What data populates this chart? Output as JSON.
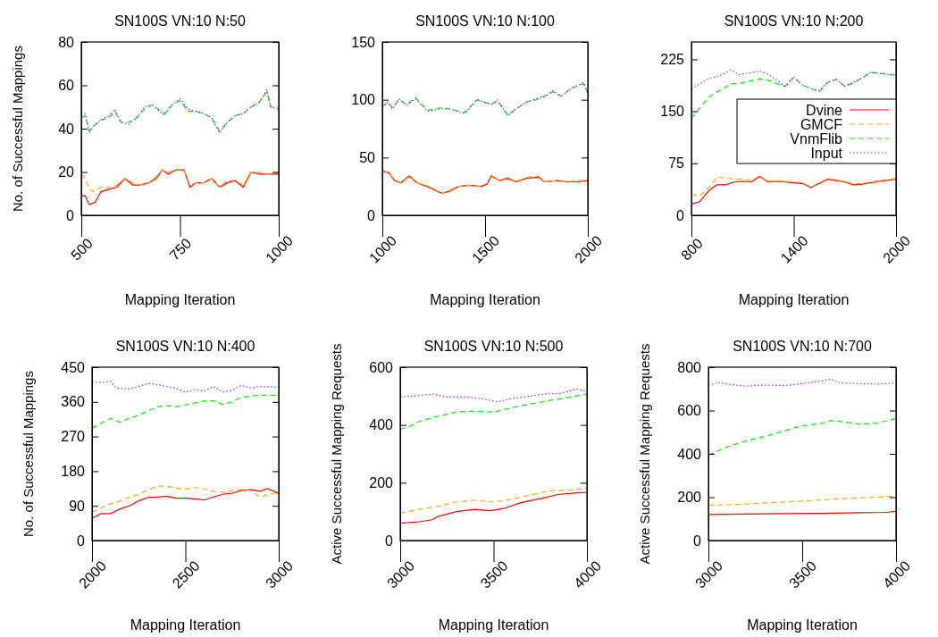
{
  "chart_data": [
    {
      "type": "line",
      "title": "SN100S VN:10 N:50",
      "xlabel": "Mapping Iteration",
      "ylabel": "No. of Successful Mappings",
      "xlim": [
        500,
        1000
      ],
      "xticks": [
        500,
        750,
        1000
      ],
      "ylim": [
        0,
        80
      ],
      "yticks": [
        0,
        20,
        40,
        60,
        80
      ],
      "series": [
        {
          "color": "#ff0000",
          "line_style": "solid",
          "x": [
            500,
            510,
            520,
            535,
            550,
            570,
            590,
            610,
            630,
            650,
            670,
            690,
            705,
            720,
            740,
            760,
            775,
            790,
            810,
            830,
            850,
            870,
            890,
            910,
            930,
            950,
            970,
            1000
          ],
          "values": [
            9,
            9,
            5,
            6,
            11,
            12,
            13,
            17,
            14,
            14,
            15,
            17,
            21,
            19,
            21,
            21,
            13,
            15,
            15,
            17,
            13,
            15,
            16,
            13,
            20,
            19,
            19,
            19
          ]
        },
        {
          "color": "#ffa500",
          "line_style": "dashed",
          "x": [
            500,
            510,
            520,
            530,
            550,
            570,
            590,
            610,
            630,
            650,
            670,
            690,
            705,
            720,
            740,
            760,
            775,
            790,
            810,
            830,
            850,
            870,
            890,
            910,
            930,
            950,
            970,
            1000
          ],
          "values": [
            19,
            17,
            12,
            11,
            13,
            13,
            14,
            17,
            15,
            14,
            15,
            18,
            21,
            20,
            21,
            21,
            14,
            15,
            15,
            17,
            13,
            16,
            16,
            14,
            20,
            20,
            19,
            20
          ]
        },
        {
          "color": "#00ee00",
          "line_style": "dashed",
          "x": [
            500,
            510,
            520,
            530,
            550,
            570,
            585,
            600,
            620,
            640,
            660,
            680,
            700,
            710,
            730,
            750,
            770,
            790,
            810,
            830,
            850,
            870,
            890,
            910,
            930,
            950,
            970,
            980,
            1000
          ],
          "values": [
            45,
            46,
            39,
            41,
            44,
            45,
            48,
            43,
            43,
            45,
            49,
            51,
            48,
            47,
            51,
            53,
            48,
            48,
            47,
            45,
            39,
            43,
            46,
            47,
            50,
            52,
            57,
            50,
            50
          ]
        },
        {
          "color": "#a020f0",
          "line_style": "dotted",
          "x": [
            500,
            510,
            520,
            530,
            550,
            570,
            585,
            600,
            620,
            640,
            660,
            680,
            700,
            710,
            730,
            750,
            770,
            790,
            810,
            830,
            850,
            870,
            890,
            910,
            930,
            950,
            970,
            980,
            1000
          ],
          "values": [
            46,
            47,
            38,
            41,
            44,
            46,
            49,
            43,
            42,
            45,
            50,
            51,
            48,
            46,
            51,
            54,
            49,
            48,
            47,
            45,
            38,
            43,
            46,
            47,
            50,
            52,
            58,
            50,
            49
          ]
        }
      ]
    },
    {
      "type": "line",
      "title": "SN100S VN:10 N:100",
      "xlabel": "Mapping Iteration",
      "xlim": [
        1000,
        2000
      ],
      "xticks": [
        1000,
        1500,
        2000
      ],
      "ylim": [
        0,
        150
      ],
      "yticks": [
        0,
        50,
        100,
        150
      ],
      "series": [
        {
          "color": "#ff0000",
          "line_style": "solid",
          "x": [
            1000,
            1030,
            1060,
            1090,
            1130,
            1170,
            1230,
            1290,
            1330,
            1370,
            1420,
            1480,
            1510,
            1530,
            1570,
            1610,
            1650,
            1700,
            1760,
            1790,
            1850,
            1900,
            1950,
            2000
          ],
          "values": [
            38,
            37,
            30,
            28,
            34,
            28,
            24,
            19,
            21,
            25,
            26,
            25,
            27,
            34,
            30,
            32,
            29,
            32,
            33,
            29,
            30,
            29,
            29,
            30
          ]
        },
        {
          "color": "#ffa500",
          "line_style": "dashed",
          "x": [
            1000,
            1030,
            1060,
            1090,
            1130,
            1170,
            1230,
            1290,
            1330,
            1370,
            1420,
            1480,
            1510,
            1530,
            1570,
            1610,
            1650,
            1700,
            1760,
            1790,
            1850,
            1900,
            1950,
            2000
          ],
          "values": [
            39,
            37,
            31,
            28,
            35,
            28,
            25,
            19,
            22,
            25,
            26,
            25,
            28,
            35,
            30,
            33,
            29,
            33,
            34,
            29,
            30,
            29,
            30,
            30
          ]
        },
        {
          "color": "#00ee00",
          "line_style": "dashed",
          "x": [
            1000,
            1025,
            1050,
            1080,
            1120,
            1160,
            1220,
            1280,
            1330,
            1400,
            1460,
            1530,
            1560,
            1610,
            1650,
            1700,
            1750,
            1800,
            1830,
            1870,
            1920,
            1980,
            2000
          ],
          "values": [
            94,
            98,
            93,
            100,
            96,
            102,
            91,
            93,
            92,
            89,
            100,
            96,
            99,
            87,
            92,
            98,
            100,
            104,
            107,
            103,
            110,
            114,
            106
          ]
        },
        {
          "color": "#a020f0",
          "line_style": "dotted",
          "x": [
            1000,
            1025,
            1050,
            1080,
            1120,
            1160,
            1220,
            1280,
            1330,
            1400,
            1460,
            1530,
            1560,
            1610,
            1650,
            1700,
            1750,
            1800,
            1830,
            1870,
            1920,
            1980,
            2000
          ],
          "values": [
            93,
            98,
            92,
            101,
            95,
            101,
            90,
            92,
            92,
            88,
            100,
            96,
            100,
            86,
            92,
            98,
            101,
            104,
            108,
            103,
            110,
            115,
            105
          ]
        }
      ]
    },
    {
      "type": "line",
      "title": "SN100S VN:10 N:200",
      "xlabel": "Mapping Iteration",
      "xlim": [
        800,
        2000
      ],
      "xticks": [
        800,
        1400,
        2000
      ],
      "ylim": [
        0,
        250
      ],
      "yticks": [
        0,
        75,
        150,
        225
      ],
      "legend": "right",
      "series": [
        {
          "name": "Dvine",
          "color": "#ff0000",
          "line_style": "solid",
          "x": [
            800,
            850,
            900,
            950,
            1000,
            1050,
            1100,
            1150,
            1200,
            1250,
            1300,
            1350,
            1400,
            1450,
            1500,
            1550,
            1600,
            1650,
            1700,
            1750,
            1800,
            1850,
            1900,
            2000
          ],
          "values": [
            16,
            20,
            35,
            44,
            44,
            48,
            49,
            48,
            56,
            48,
            49,
            48,
            47,
            46,
            40,
            46,
            52,
            50,
            48,
            44,
            45,
            47,
            49,
            52
          ]
        },
        {
          "name": "GMCF",
          "color": "#ffa500",
          "line_style": "dashed",
          "x": [
            800,
            850,
            900,
            950,
            1000,
            1050,
            1100,
            1150,
            1200,
            1250,
            1300,
            1350,
            1400,
            1450,
            1500,
            1550,
            1600,
            1650,
            1700,
            1750,
            1800,
            1850,
            1900,
            2000
          ],
          "values": [
            30,
            28,
            40,
            55,
            54,
            52,
            52,
            50,
            57,
            49,
            50,
            49,
            48,
            47,
            41,
            47,
            53,
            51,
            49,
            45,
            46,
            48,
            50,
            53
          ]
        },
        {
          "name": "VnmFlib",
          "color": "#00ee00",
          "line_style": "dashed",
          "x": [
            800,
            850,
            900,
            950,
            1000,
            1030,
            1080,
            1150,
            1200,
            1250,
            1300,
            1350,
            1400,
            1450,
            1500,
            1550,
            1600,
            1650,
            1700,
            1750,
            1800,
            1850,
            1900,
            2000
          ],
          "values": [
            140,
            155,
            170,
            178,
            185,
            190,
            190,
            194,
            197,
            195,
            190,
            186,
            199,
            188,
            183,
            178,
            192,
            196,
            186,
            191,
            198,
            206,
            205,
            202
          ]
        },
        {
          "name": "Input",
          "color": "#a020f0",
          "line_style": "dotted",
          "x": [
            800,
            850,
            900,
            950,
            1000,
            1030,
            1080,
            1130,
            1200,
            1240,
            1300,
            1350,
            1400,
            1450,
            1500,
            1550,
            1600,
            1650,
            1700,
            1750,
            1800,
            1850,
            1900,
            2000
          ],
          "values": [
            182,
            190,
            197,
            200,
            205,
            210,
            203,
            205,
            208,
            205,
            195,
            186,
            200,
            188,
            183,
            180,
            192,
            196,
            186,
            192,
            198,
            206,
            205,
            202
          ]
        }
      ]
    },
    {
      "type": "line",
      "title": "SN100S VN:10 N:400",
      "xlabel": "Mapping Iteration",
      "ylabel": "No. of Successful Mappings",
      "xlim": [
        2000,
        3000
      ],
      "xticks": [
        2000,
        2500,
        3000
      ],
      "ylim": [
        0,
        450
      ],
      "yticks": [
        0,
        90,
        180,
        270,
        360,
        450
      ],
      "series": [
        {
          "color": "#ff0000",
          "line_style": "solid",
          "x": [
            2000,
            2050,
            2100,
            2150,
            2200,
            2250,
            2300,
            2350,
            2400,
            2450,
            2500,
            2550,
            2600,
            2650,
            2700,
            2750,
            2800,
            2850,
            2900,
            2940,
            3000
          ],
          "values": [
            58,
            70,
            70,
            82,
            90,
            103,
            112,
            113,
            115,
            110,
            110,
            108,
            105,
            113,
            120,
            123,
            130,
            132,
            128,
            135,
            122
          ]
        },
        {
          "color": "#ffa500",
          "line_style": "dashed",
          "x": [
            2000,
            2050,
            2100,
            2150,
            2200,
            2250,
            2300,
            2350,
            2400,
            2450,
            2500,
            2550,
            2600,
            2650,
            2700,
            2750,
            2800,
            2850,
            2900,
            2950,
            3000
          ],
          "values": [
            73,
            85,
            95,
            103,
            112,
            120,
            132,
            141,
            141,
            136,
            133,
            138,
            134,
            128,
            125,
            130,
            132,
            130,
            113,
            120,
            125
          ]
        },
        {
          "color": "#00ee00",
          "line_style": "dashed",
          "x": [
            2000,
            2100,
            2150,
            2200,
            2250,
            2300,
            2350,
            2400,
            2450,
            2500,
            2550,
            2600,
            2650,
            2700,
            2750,
            2800,
            2850,
            2900,
            3000
          ],
          "values": [
            292,
            317,
            307,
            318,
            325,
            337,
            347,
            350,
            347,
            352,
            357,
            362,
            363,
            353,
            360,
            372,
            375,
            377,
            378
          ]
        },
        {
          "color": "#a020f0",
          "line_style": "dotted",
          "x": [
            2000,
            2050,
            2100,
            2130,
            2200,
            2250,
            2300,
            2350,
            2450,
            2500,
            2550,
            2600,
            2650,
            2700,
            2750,
            2800,
            2850,
            2900,
            3000
          ],
          "values": [
            411,
            410,
            413,
            396,
            393,
            400,
            408,
            405,
            395,
            385,
            392,
            388,
            400,
            385,
            390,
            403,
            396,
            400,
            398
          ]
        }
      ]
    },
    {
      "type": "line",
      "title": "SN100S VN:10 N:500",
      "xlabel": "Mapping Iteration",
      "ylabel": "Active Successful Mapping Requests",
      "xlim": [
        3000,
        4000
      ],
      "xticks": [
        3000,
        3500,
        4000
      ],
      "ylim": [
        0,
        600
      ],
      "yticks": [
        0,
        200,
        400,
        600
      ],
      "series": [
        {
          "color": "#ff0000",
          "line_style": "solid",
          "x": [
            3000,
            3100,
            3170,
            3200,
            3300,
            3400,
            3480,
            3560,
            3650,
            3750,
            3850,
            3950,
            4000
          ],
          "values": [
            60,
            65,
            72,
            83,
            100,
            108,
            103,
            112,
            132,
            145,
            160,
            165,
            167
          ]
        },
        {
          "color": "#ffa500",
          "line_style": "dashed",
          "x": [
            3000,
            3100,
            3200,
            3300,
            3400,
            3500,
            3600,
            3700,
            3800,
            3900,
            4000
          ],
          "values": [
            95,
            108,
            118,
            133,
            140,
            133,
            143,
            158,
            172,
            174,
            180
          ]
        },
        {
          "color": "#00ee00",
          "line_style": "dashed",
          "x": [
            3000,
            3050,
            3100,
            3200,
            3300,
            3400,
            3500,
            3600,
            3700,
            3800,
            3900,
            4000
          ],
          "values": [
            385,
            395,
            412,
            430,
            445,
            448,
            445,
            460,
            473,
            485,
            495,
            508
          ]
        },
        {
          "color": "#a020f0",
          "line_style": "dotted",
          "x": [
            3000,
            3100,
            3180,
            3250,
            3350,
            3450,
            3520,
            3600,
            3700,
            3800,
            3850,
            3950,
            4000
          ],
          "values": [
            497,
            502,
            507,
            497,
            497,
            490,
            480,
            492,
            500,
            510,
            508,
            525,
            515
          ]
        }
      ]
    },
    {
      "type": "line",
      "title": "SN100S VN:10 N:700",
      "xlabel": "Mapping Iteration",
      "ylabel": "Active Successful Mapping Requests",
      "xlim": [
        3000,
        4000
      ],
      "xticks": [
        3000,
        3500,
        4000
      ],
      "ylim": [
        0,
        800
      ],
      "yticks": [
        0,
        200,
        400,
        600,
        800
      ],
      "series": [
        {
          "color": "#ff0000",
          "line_style": "solid",
          "x": [
            3000,
            3200,
            3400,
            3600,
            3800,
            3950,
            4000
          ],
          "values": [
            120,
            122,
            124,
            125,
            128,
            130,
            135
          ]
        },
        {
          "color": "#ffa500",
          "line_style": "dashed",
          "x": [
            3000,
            3100,
            3200,
            3300,
            3400,
            3500,
            3600,
            3700,
            3800,
            3900,
            4000
          ],
          "values": [
            163,
            165,
            168,
            173,
            178,
            182,
            187,
            193,
            197,
            200,
            205
          ]
        },
        {
          "color": "#00ee00",
          "line_style": "dashed",
          "x": [
            3000,
            3100,
            3200,
            3300,
            3400,
            3500,
            3600,
            3650,
            3700,
            3800,
            3900,
            4000
          ],
          "values": [
            395,
            432,
            460,
            480,
            505,
            530,
            540,
            553,
            550,
            537,
            542,
            563
          ]
        },
        {
          "color": "#a020f0",
          "line_style": "dotted",
          "x": [
            3000,
            3050,
            3100,
            3200,
            3300,
            3400,
            3500,
            3600,
            3650,
            3700,
            3800,
            3900,
            4000
          ],
          "values": [
            715,
            730,
            722,
            712,
            718,
            715,
            725,
            735,
            745,
            728,
            725,
            722,
            728
          ]
        }
      ]
    }
  ]
}
